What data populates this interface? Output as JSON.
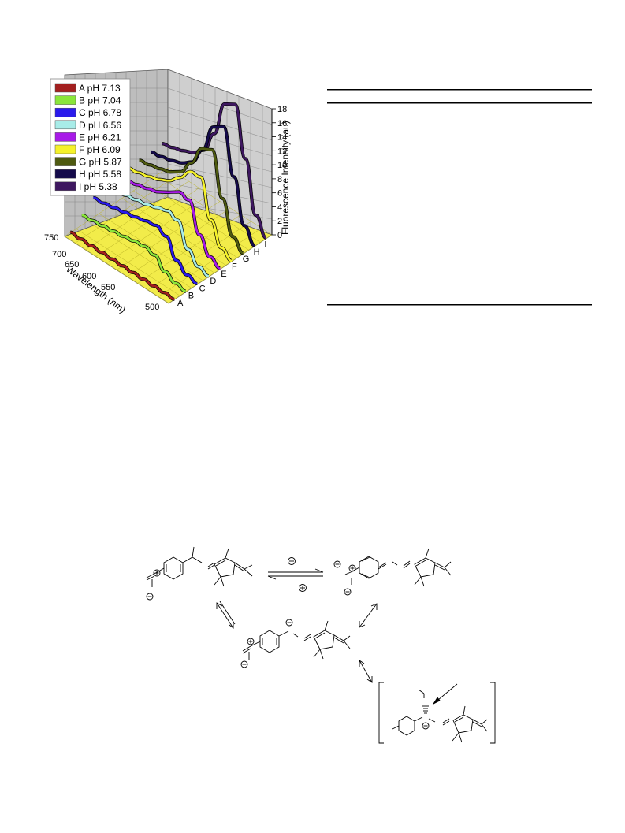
{
  "chart_data": {
    "type": "line",
    "subtype": "3d-waterfall",
    "title": "",
    "xlabel": "Wavelength (nm)",
    "ylabel": "",
    "zlabel": "Fluorescence Intensity (au)",
    "x_ticks": [
      "750",
      "700",
      "650",
      "600",
      "550",
      "500"
    ],
    "z_ticks": [
      "0",
      "2",
      "4",
      "6",
      "8",
      "10",
      "12",
      "14",
      "16",
      "18"
    ],
    "depth_ticks": [
      "A",
      "B",
      "C",
      "D",
      "E",
      "F",
      "G",
      "H",
      "I"
    ],
    "xlim": [
      500,
      750
    ],
    "zlim": [
      0,
      18
    ],
    "grid": true,
    "legend_position": "top-left",
    "x": [
      500,
      525,
      550,
      575,
      600,
      625,
      650,
      675,
      700,
      725,
      750
    ],
    "series": [
      {
        "name": "A pH 7.13",
        "color": "#a31f1f",
        "values": [
          0.05,
          0.05,
          0.05,
          0.05,
          0.05,
          0.05,
          0.05,
          0.05,
          0.05,
          0.05,
          0.05
        ]
      },
      {
        "name": "B pH 7.04",
        "color": "#8ae63a",
        "values": [
          0.1,
          0.3,
          1.0,
          2.4,
          2.7,
          2.5,
          2.2,
          2.0,
          1.8,
          1.6,
          1.4
        ]
      },
      {
        "name": "C pH 6.78",
        "color": "#2a1aec",
        "values": [
          0.1,
          0.4,
          1.5,
          4.0,
          4.6,
          4.3,
          3.9,
          3.6,
          3.3,
          3.0,
          2.8
        ]
      },
      {
        "name": "D pH 6.56",
        "color": "#a8ece8",
        "values": [
          0.1,
          0.5,
          2.0,
          5.2,
          5.6,
          5.1,
          4.6,
          4.3,
          4.0,
          3.7,
          3.4
        ]
      },
      {
        "name": "E pH 6.21",
        "color": "#a81ae8",
        "values": [
          0.1,
          0.8,
          3.0,
          7.0,
          7.2,
          6.2,
          5.3,
          4.8,
          4.4,
          4.0,
          3.7
        ]
      },
      {
        "name": "F pH 6.09",
        "color": "#f5f22a",
        "values": [
          0.1,
          1.0,
          4.0,
          9.2,
          9.0,
          7.2,
          5.8,
          5.0,
          4.5,
          4.1,
          3.8
        ]
      },
      {
        "name": "G pH 5.87",
        "color": "#4e5a10",
        "values": [
          0.1,
          1.5,
          6.0,
          12.0,
          11.2,
          8.2,
          6.0,
          5.0,
          4.5,
          4.1,
          3.8
        ]
      },
      {
        "name": "H pH 5.58",
        "color": "#140a4a",
        "values": [
          0.1,
          2.0,
          8.0,
          14.2,
          13.2,
          9.0,
          6.3,
          5.2,
          4.6,
          4.2,
          3.9
        ]
      },
      {
        "name": "I pH 5.38",
        "color": "#3e1760",
        "values": [
          0.1,
          2.4,
          9.5,
          16.3,
          15.4,
          10.2,
          6.9,
          5.6,
          4.9,
          4.4,
          4.0
        ]
      }
    ]
  }
}
